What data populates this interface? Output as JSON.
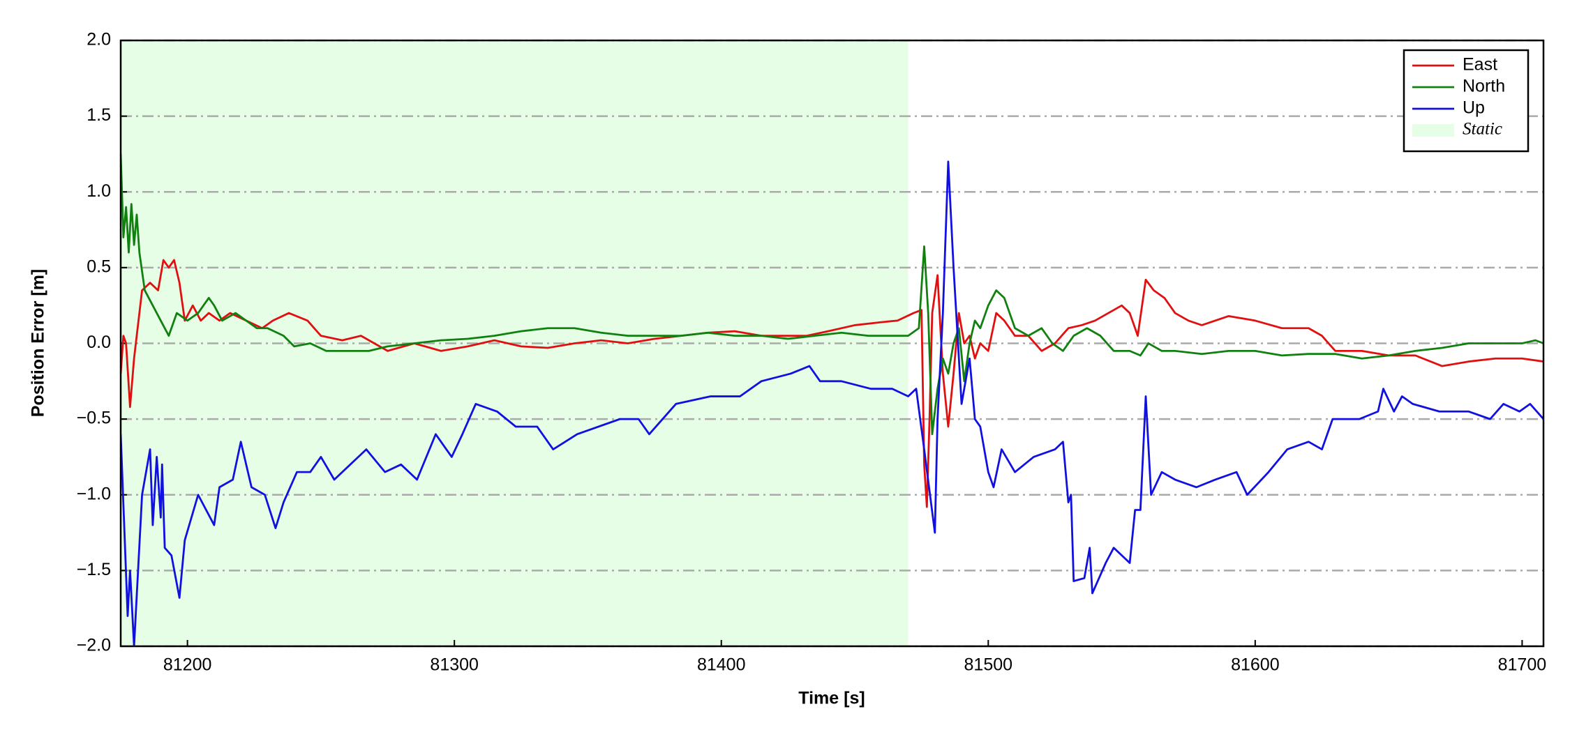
{
  "chart_data": {
    "type": "line",
    "xlabel": "Time [s]",
    "ylabel": "Position Error [m]",
    "xlim": [
      81175,
      81708
    ],
    "ylim": [
      -2.0,
      2.0
    ],
    "xticks": [
      81200,
      81300,
      81400,
      81500,
      81600,
      81700
    ],
    "yticks": [
      {
        "value": -2.0,
        "label": "−2.0"
      },
      {
        "value": -1.5,
        "label": "−1.5"
      },
      {
        "value": -1.0,
        "label": "−1.0"
      },
      {
        "value": -0.5,
        "label": "−0.5"
      },
      {
        "value": 0.0,
        "label": "0.0"
      },
      0.5,
      {
        "value": 1.0,
        "label": "1.0"
      },
      1.5,
      {
        "value": 2.0,
        "label": "2.0"
      }
    ],
    "grid": true,
    "legend": "upper right",
    "shade": {
      "name": "Static",
      "color": "#e6fde6",
      "x": [
        81175,
        81470
      ]
    },
    "series": [
      {
        "name": "East",
        "color": "#e01010",
        "x": [
          81175,
          81176,
          81177,
          81178.5,
          81180,
          81181,
          81183,
          81186,
          81189,
          81191,
          81193,
          81195,
          81197,
          81199,
          81202,
          81205,
          81208,
          81212,
          81216,
          81222,
          81228,
          81232,
          81238,
          81245,
          81250,
          81258,
          81265,
          81270,
          81275,
          81285,
          81295,
          81305,
          81315,
          81325,
          81335,
          81345,
          81355,
          81365,
          81375,
          81385,
          81395,
          81405,
          81415,
          81425,
          81432,
          81440,
          81450,
          81460,
          81466,
          81472,
          81475,
          81476,
          81477,
          81478,
          81479,
          81481,
          81483,
          81485,
          81487,
          81489,
          81491,
          81493,
          81495,
          81497,
          81500,
          81503,
          81506,
          81510,
          81515,
          81520,
          81525,
          81530,
          81535,
          81540,
          81545,
          81550,
          81553,
          81556,
          81559,
          81562,
          81566,
          81570,
          81575,
          81580,
          81590,
          81600,
          81610,
          81620,
          81625,
          81630,
          81640,
          81650,
          81660,
          81670,
          81680,
          81690,
          81700,
          81708
        ],
        "values": [
          -0.2,
          0.05,
          0.0,
          -0.42,
          -0.1,
          0.05,
          0.35,
          0.4,
          0.35,
          0.55,
          0.5,
          0.55,
          0.4,
          0.15,
          0.25,
          0.15,
          0.2,
          0.15,
          0.2,
          0.15,
          0.1,
          0.15,
          0.2,
          0.15,
          0.05,
          0.02,
          0.05,
          0.0,
          -0.05,
          0.0,
          -0.05,
          -0.02,
          0.02,
          -0.02,
          -0.03,
          0.0,
          0.02,
          0.0,
          0.03,
          0.05,
          0.07,
          0.08,
          0.05,
          0.05,
          0.05,
          0.08,
          0.12,
          0.14,
          0.15,
          0.2,
          0.22,
          -0.8,
          -1.08,
          -0.5,
          0.2,
          0.45,
          -0.2,
          -0.55,
          -0.2,
          0.2,
          0.0,
          0.05,
          -0.1,
          0.0,
          -0.05,
          0.2,
          0.15,
          0.05,
          0.05,
          -0.05,
          0.0,
          0.1,
          0.12,
          0.15,
          0.2,
          0.25,
          0.2,
          0.05,
          0.42,
          0.35,
          0.3,
          0.2,
          0.15,
          0.12,
          0.18,
          0.15,
          0.1,
          0.1,
          0.05,
          -0.05,
          -0.05,
          -0.08,
          -0.08,
          -0.15,
          -0.12,
          -0.1,
          -0.1,
          -0.12
        ]
      },
      {
        "name": "North",
        "color": "#10800f",
        "x": [
          81175,
          81176,
          81177,
          81178,
          81179,
          81180,
          81181,
          81182,
          81184,
          81187,
          81190,
          81193,
          81196,
          81200,
          81204,
          81208,
          81210,
          81213,
          81218,
          81222,
          81226,
          81230,
          81236,
          81240,
          81246,
          81252,
          81260,
          81268,
          81275,
          81285,
          81295,
          81305,
          81315,
          81325,
          81335,
          81345,
          81355,
          81365,
          81375,
          81385,
          81395,
          81405,
          81415,
          81425,
          81435,
          81445,
          81455,
          81470,
          81474,
          81476,
          81477.5,
          81479,
          81481,
          81483,
          81485,
          81487,
          81489,
          81491,
          81493,
          81495,
          81497,
          81500,
          81503,
          81506,
          81510,
          81515,
          81520,
          81524,
          81528,
          81532,
          81537,
          81542,
          81547,
          81553,
          81557,
          81560,
          81565,
          81570,
          81580,
          81590,
          81600,
          81610,
          81620,
          81630,
          81640,
          81650,
          81660,
          81670,
          81680,
          81690,
          81700,
          81705,
          81708
        ],
        "values": [
          1.25,
          0.7,
          0.9,
          0.6,
          0.92,
          0.65,
          0.85,
          0.6,
          0.35,
          0.25,
          0.15,
          0.05,
          0.2,
          0.15,
          0.2,
          0.3,
          0.25,
          0.15,
          0.2,
          0.15,
          0.1,
          0.1,
          0.05,
          -0.02,
          0.0,
          -0.05,
          -0.05,
          -0.05,
          -0.02,
          0.0,
          0.02,
          0.03,
          0.05,
          0.08,
          0.1,
          0.1,
          0.07,
          0.05,
          0.05,
          0.05,
          0.07,
          0.05,
          0.05,
          0.03,
          0.05,
          0.07,
          0.05,
          0.05,
          0.1,
          0.64,
          0.2,
          -0.6,
          -0.3,
          -0.1,
          -0.2,
          0.0,
          0.1,
          -0.25,
          0.0,
          0.15,
          0.1,
          0.25,
          0.35,
          0.3,
          0.1,
          0.05,
          0.1,
          0.0,
          -0.05,
          0.05,
          0.1,
          0.05,
          -0.05,
          -0.05,
          -0.08,
          0.0,
          -0.05,
          -0.05,
          -0.07,
          -0.05,
          -0.05,
          -0.08,
          -0.07,
          -0.07,
          -0.1,
          -0.08,
          -0.05,
          -0.03,
          0.0,
          0.0,
          0.0,
          0.02,
          0.0
        ]
      },
      {
        "name": "Up",
        "color": "#1010e0",
        "x": [
          81175,
          81177.6,
          81178.5,
          81180,
          81183,
          81186,
          81187,
          81188.5,
          81190,
          81190.5,
          81191.5,
          81194,
          81197,
          81199,
          81204,
          81210,
          81212,
          81217,
          81220,
          81224,
          81229,
          81233,
          81236,
          81241,
          81246,
          81250,
          81255,
          81267,
          81274,
          81280,
          81286,
          81293,
          81299,
          81303,
          81308,
          81316,
          81323,
          81331,
          81337,
          81346,
          81362,
          81369,
          81373,
          81383,
          81396,
          81407,
          81415,
          81426,
          81433,
          81437,
          81445,
          81456,
          81464,
          81470,
          81473,
          81476,
          81480,
          81481,
          81483,
          81485,
          81487,
          81490,
          81493,
          81495,
          81497,
          81500,
          81502,
          81505,
          81510,
          81517,
          81525,
          81528,
          81530,
          81531,
          81532,
          81536,
          81538,
          81539,
          81544,
          81547,
          81553,
          81555,
          81557,
          81559,
          81561,
          81565,
          81570,
          81578,
          81585,
          81593,
          81597,
          81605,
          81612,
          81620,
          81625,
          81629,
          81639,
          81646,
          81648,
          81652,
          81655,
          81659,
          81669,
          81680,
          81688,
          81693,
          81699,
          81703,
          81708
        ],
        "values": [
          -0.6,
          -1.8,
          -1.5,
          -2.0,
          -1.0,
          -0.7,
          -1.2,
          -0.75,
          -1.15,
          -0.8,
          -1.35,
          -1.4,
          -1.68,
          -1.3,
          -1.0,
          -1.2,
          -0.95,
          -0.9,
          -0.65,
          -0.95,
          -1.0,
          -1.22,
          -1.05,
          -0.85,
          -0.85,
          -0.75,
          -0.9,
          -0.7,
          -0.85,
          -0.8,
          -0.9,
          -0.6,
          -0.75,
          -0.6,
          -0.4,
          -0.45,
          -0.55,
          -0.55,
          -0.7,
          -0.6,
          -0.5,
          -0.5,
          -0.6,
          -0.4,
          -0.35,
          -0.35,
          -0.25,
          -0.2,
          -0.15,
          -0.25,
          -0.25,
          -0.3,
          -0.3,
          -0.35,
          -0.3,
          -0.7,
          -1.25,
          -0.5,
          0.2,
          1.2,
          0.5,
          -0.4,
          -0.1,
          -0.5,
          -0.55,
          -0.85,
          -0.95,
          -0.7,
          -0.85,
          -0.75,
          -0.7,
          -0.65,
          -1.05,
          -1.0,
          -1.57,
          -1.55,
          -1.35,
          -1.65,
          -1.45,
          -1.35,
          -1.45,
          -1.1,
          -1.1,
          -0.35,
          -1.0,
          -0.85,
          -0.9,
          -0.95,
          -0.9,
          -0.85,
          -1.0,
          -0.85,
          -0.7,
          -0.65,
          -0.7,
          -0.5,
          -0.5,
          -0.45,
          -0.3,
          -0.45,
          -0.35,
          -0.4,
          -0.45,
          -0.45,
          -0.5,
          -0.4,
          -0.45,
          -0.4,
          -0.5
        ]
      }
    ]
  }
}
